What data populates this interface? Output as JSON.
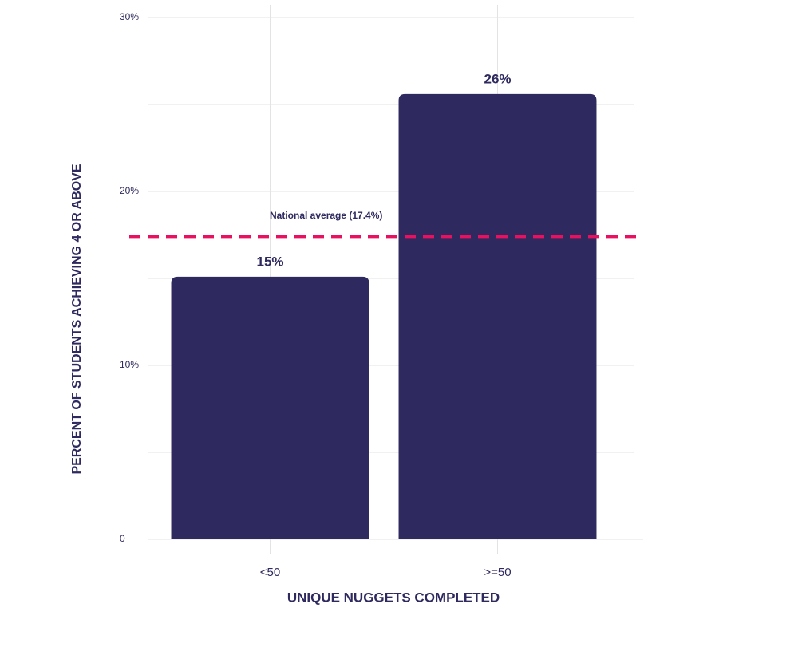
{
  "chart_data": {
    "type": "bar",
    "x_label": "UNIQUE NUGGETS COMPLETED",
    "y_label": "PERCENT OF STUDENTS ACHIEVING 4 OR ABOVE",
    "categories": [
      "<50",
      ">=50"
    ],
    "values": [
      15.1,
      25.6
    ],
    "value_labels": [
      "15%",
      "26%"
    ],
    "color": "#2e2a5f",
    "ylim": [
      0,
      30
    ],
    "yticks": [
      0,
      {
        "value": 10,
        "label": "10%"
      },
      {
        "value": 20,
        "label": "20%"
      },
      {
        "value": 30,
        "label": "30%"
      }
    ],
    "minor_yticks": [
      5,
      15,
      25
    ],
    "grid": true,
    "reference_line": {
      "value": 17.4,
      "label": "National average (17.4%)",
      "color": "#e8105f"
    }
  }
}
